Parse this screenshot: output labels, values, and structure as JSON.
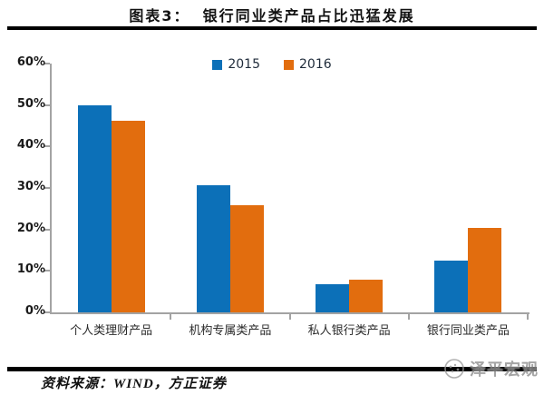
{
  "header": {
    "figure_label": "图表3：",
    "figure_title": "银行同业类产品占比迅猛发展"
  },
  "chart_data": {
    "type": "bar",
    "title": "银行同业类产品占比迅猛发展",
    "categories": [
      "个人类理财产品",
      "机构专属类产品",
      "私人银行类产品",
      "银行同业类产品"
    ],
    "series": [
      {
        "name": "2015",
        "color": "#0c70b8",
        "values": [
          49.9,
          30.6,
          6.8,
          12.4
        ]
      },
      {
        "name": "2016",
        "color": "#e26d0e",
        "values": [
          46.2,
          25.8,
          7.8,
          20.4
        ]
      }
    ],
    "ylabel": "",
    "xlabel": "",
    "ylim": [
      0,
      60
    ],
    "ytick_step": 10,
    "ytick_labels": [
      "0%",
      "10%",
      "20%",
      "30%",
      "40%",
      "50%",
      "60%"
    ],
    "legend_position": "top-center",
    "grid": false,
    "axis_color": "#a3a3a3"
  },
  "footer": {
    "source": "资料来源：WIND，方正证券"
  },
  "watermark": {
    "label": "泽平宏观"
  }
}
